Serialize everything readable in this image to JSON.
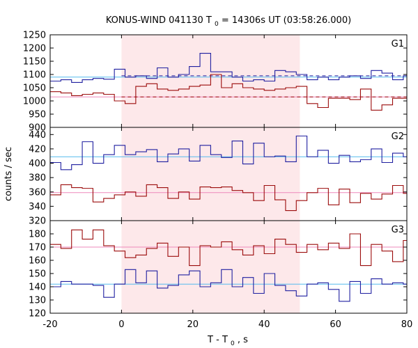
{
  "chart_data": {
    "type": "line",
    "title_text": "KONUS-WIND 041130 T",
    "title_sub": "0",
    "title_rest": " = 14306s UT (03:58:26.000)",
    "xlabel_text": "T - T",
    "xlabel_sub": "0",
    "xlabel_rest": ", s",
    "ylabel": "counts / sec",
    "xlim": [
      -20,
      80
    ],
    "xticks": [
      -20,
      0,
      20,
      40,
      60,
      80
    ],
    "shaded_interval": [
      0,
      50
    ],
    "colors": {
      "blue": "#1f1fa0",
      "red": "#9b0b0b",
      "cyan": "#55bbee",
      "pink": "#ee88bb",
      "shade": "#fde8ea"
    },
    "panels": [
      {
        "name": "G1",
        "ylim": [
          900,
          1250
        ],
        "yticks": [
          900,
          950,
          1000,
          1050,
          1100,
          1150,
          1200,
          1250
        ],
        "bin_edges": [
          -20,
          -17,
          -14,
          -11,
          -8,
          -5,
          -2,
          1,
          4,
          7,
          10,
          13,
          16,
          19,
          22,
          25,
          28,
          31,
          34,
          37,
          40,
          43,
          46,
          49,
          52,
          55,
          58,
          61,
          64,
          67,
          70,
          73,
          76,
          79,
          80
        ],
        "series": [
          {
            "color": "blue",
            "values": [
              1075,
              1080,
              1070,
              1080,
              1085,
              1082,
              1120,
              1090,
              1095,
              1085,
              1125,
              1090,
              1100,
              1130,
              1180,
              1110,
              1110,
              1090,
              1075,
              1080,
              1075,
              1115,
              1110,
              1100,
              1080,
              1090,
              1080,
              1090,
              1095,
              1085,
              1115,
              1105,
              1080,
              1095
            ]
          },
          {
            "color": "red",
            "values": [
              1035,
              1030,
              1020,
              1025,
              1030,
              1025,
              1000,
              990,
              1055,
              1065,
              1045,
              1040,
              1045,
              1055,
              1060,
              1100,
              1050,
              1065,
              1050,
              1045,
              1040,
              1045,
              1050,
              1055,
              990,
              975,
              1010,
              1010,
              1005,
              1045,
              965,
              985,
              1010,
              1010
            ]
          }
        ],
        "bg_lines": [
          {
            "color": "cyan",
            "y": 1090,
            "from": -20,
            "to": 80,
            "dash": false
          },
          {
            "color": "pink",
            "y": 1015,
            "from": -20,
            "to": 80,
            "dash": false
          },
          {
            "color": "blue",
            "y": 1095,
            "from": 0,
            "to": 80,
            "dash": true
          },
          {
            "color": "red",
            "y": 1015,
            "from": 0,
            "to": 80,
            "dash": true
          }
        ]
      },
      {
        "name": "G2",
        "ylim": [
          320,
          450
        ],
        "yticks": [
          320,
          340,
          360,
          380,
          400,
          420,
          440
        ],
        "bin_edges": [
          -20,
          -17,
          -14,
          -11,
          -8,
          -5,
          -2,
          1,
          4,
          7,
          10,
          13,
          16,
          19,
          22,
          25,
          28,
          31,
          34,
          37,
          40,
          43,
          46,
          49,
          52,
          55,
          58,
          61,
          64,
          67,
          70,
          73,
          76,
          79,
          80
        ],
        "series": [
          {
            "color": "blue",
            "values": [
              401,
              391,
              398,
              430,
              400,
              412,
              425,
              412,
              416,
              419,
              402,
              413,
              420,
              403,
              425,
              412,
              408,
              431,
              399,
              428,
              409,
              410,
              402,
              438,
              409,
              418,
              400,
              411,
              402,
              405,
              420,
              401,
              414,
              409
            ]
          },
          {
            "color": "red",
            "values": [
              356,
              370,
              366,
              365,
              346,
              351,
              356,
              360,
              354,
              370,
              366,
              351,
              360,
              350,
              367,
              366,
              367,
              362,
              359,
              348,
              369,
              349,
              334,
              348,
              359,
              365,
              342,
              364,
              345,
              358,
              350,
              357,
              369,
              358
            ]
          }
        ],
        "bg_lines": [
          {
            "color": "cyan",
            "y": 409,
            "from": -20,
            "to": 80,
            "dash": false
          },
          {
            "color": "pink",
            "y": 359,
            "from": -20,
            "to": 80,
            "dash": false
          }
        ]
      },
      {
        "name": "G3",
        "ylim": [
          120,
          190
        ],
        "yticks": [
          120,
          130,
          140,
          150,
          160,
          170,
          180
        ],
        "bin_edges": [
          -20,
          -17,
          -14,
          -11,
          -8,
          -5,
          -2,
          1,
          4,
          7,
          10,
          13,
          16,
          19,
          22,
          25,
          28,
          31,
          34,
          37,
          40,
          43,
          46,
          49,
          52,
          55,
          58,
          61,
          64,
          67,
          70,
          73,
          76,
          79,
          80
        ],
        "series": [
          {
            "color": "blue",
            "values": [
              140,
              144,
              142,
              142,
              141,
              132,
              142,
              153,
              143,
              152,
              139,
              141,
              149,
              152,
              140,
              143,
              153,
              140,
              147,
              135,
              150,
              141,
              137,
              133,
              142,
              143,
              138,
              129,
              144,
              135,
              146,
              142,
              143,
              142
            ]
          },
          {
            "color": "red",
            "values": [
              172,
              169,
              183,
              176,
              183,
              171,
              167,
              162,
              164,
              169,
              173,
              163,
              170,
              156,
              171,
              170,
              174,
              168,
              164,
              171,
              165,
              176,
              172,
              166,
              172,
              168,
              173,
              169,
              180,
              156,
              172,
              167,
              159,
              175
            ]
          }
        ],
        "bg_lines": [
          {
            "color": "cyan",
            "y": 142,
            "from": -20,
            "to": 80,
            "dash": false
          },
          {
            "color": "pink",
            "y": 170,
            "from": -20,
            "to": 80,
            "dash": false
          }
        ]
      }
    ]
  }
}
